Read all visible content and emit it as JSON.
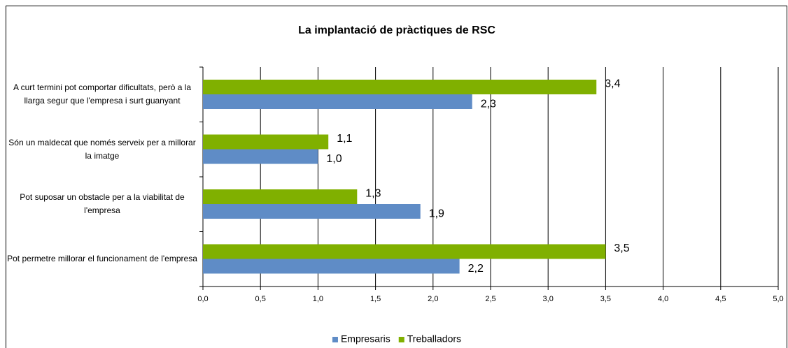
{
  "chart_data": {
    "type": "bar",
    "orientation": "horizontal",
    "title": "La implantació de pràctiques de RSC",
    "categories": [
      "A curt termini pot comportar dificultats, però a la llarga segur que l'empresa i surt guanyant",
      "Són un maldecat que només serveix per a millorar la imatge",
      "Pot suposar un obstacle per a la viabilitat de l'empresa",
      "Pot permetre millorar el funcionament de l'empresa"
    ],
    "series": [
      {
        "name": "Empresaris",
        "color": "#5f8cc6",
        "values": [
          2.34,
          1.0,
          1.89,
          2.23
        ],
        "value_labels": [
          "2,3",
          "1,0",
          "1,9",
          "2,2"
        ]
      },
      {
        "name": "Treballadors",
        "color": "#80b000",
        "values": [
          3.42,
          1.09,
          1.34,
          3.5
        ],
        "value_labels": [
          "3,4",
          "1,1",
          "1,3",
          "3,5"
        ]
      }
    ],
    "xlim": [
      0,
      5
    ],
    "xticks": [
      {
        "value": 0,
        "label": "0,0"
      },
      {
        "value": 0.5,
        "label": "0,5"
      },
      {
        "value": 1,
        "label": "1,0"
      },
      {
        "value": 1.5,
        "label": "1,5"
      },
      {
        "value": 2,
        "label": "2,0"
      },
      {
        "value": 2.5,
        "label": "2,5"
      },
      {
        "value": 3,
        "label": "3,0"
      },
      {
        "value": 3.5,
        "label": "3,5"
      },
      {
        "value": 4,
        "label": "4,0"
      },
      {
        "value": 4.5,
        "label": "4,5"
      },
      {
        "value": 5,
        "label": "5,0"
      }
    ],
    "grid": true,
    "legend": "bottom"
  }
}
